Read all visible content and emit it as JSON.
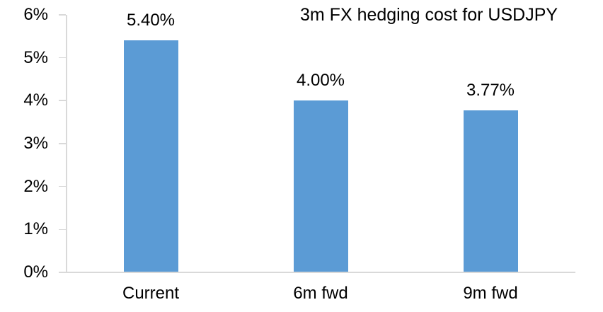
{
  "chart_data": {
    "type": "bar",
    "title": "3m FX hedging cost for USDJPY",
    "categories": [
      "Current",
      "6m fwd",
      "9m fwd"
    ],
    "values": [
      5.4,
      4.0,
      3.77
    ],
    "data_labels": [
      "5.40%",
      "4.00%",
      "3.77%"
    ],
    "series": [
      {
        "name": "3m FX hedging cost",
        "values": [
          5.4,
          4.0,
          3.77
        ]
      }
    ],
    "xlabel": "",
    "ylabel": "",
    "ylim": [
      0,
      6
    ],
    "y_tick_values": [
      0,
      1,
      2,
      3,
      4,
      5,
      6
    ],
    "y_tick_labels": [
      "0%",
      "1%",
      "2%",
      "3%",
      "4%",
      "5%",
      "6%"
    ],
    "grid": false,
    "legend": false,
    "bar_color": "#5b9bd5",
    "axis_color": "#d9d9d9",
    "text_color": "#000000"
  }
}
